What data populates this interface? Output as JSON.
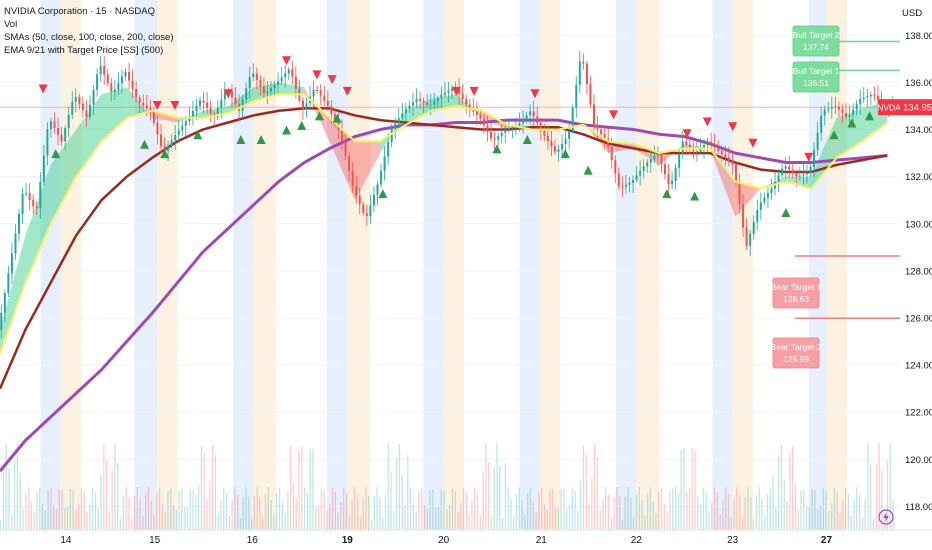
{
  "legend": {
    "symbol": "NVIDIA Corporation · 15 · NASDAQ",
    "vol": "Vol",
    "smas": "SMAs (50, close, 100, close, 200, close)",
    "ema": "EMA 9/21 with Target Price [SS] (500)"
  },
  "price_axis": {
    "currency": "USD",
    "ticker_badge": "NVDA",
    "last_price_label": "134.95",
    "colors": {
      "badge": "#f23645",
      "axis_text": "#131722"
    }
  },
  "targets": {
    "bull_target_2": {
      "label": "Bull Target 2",
      "value": "137.74"
    },
    "bull_target_1": {
      "label": "Bull Target 1",
      "value": "136.51"
    },
    "bear_target_1": {
      "label": "Bear Target 1",
      "value": "128.63"
    },
    "bear_target_2": {
      "label": "Bear Target 2",
      "value": "125.99"
    }
  },
  "chart_data": {
    "type": "line",
    "ylim": [
      117,
      139.5
    ],
    "y_ticks": [
      118,
      120,
      122,
      124,
      126,
      128,
      130,
      132,
      134,
      136,
      138
    ],
    "y_tick_labels": [
      "118.00",
      "120.00",
      "122.00",
      "124.00",
      "126.00",
      "128.00",
      "130.00",
      "132.00",
      "134.00",
      "136.00",
      "138.00"
    ],
    "x_ticks": [
      {
        "label": "14",
        "t": 2.6,
        "bold": false
      },
      {
        "label": "15",
        "t": 6.1,
        "bold": false
      },
      {
        "label": "16",
        "t": 9.95,
        "bold": false
      },
      {
        "label": "19",
        "t": 13.7,
        "bold": true
      },
      {
        "label": "20",
        "t": 17.5,
        "bold": false
      },
      {
        "label": "21",
        "t": 21.35,
        "bold": false
      },
      {
        "label": "22",
        "t": 25.1,
        "bold": false
      },
      {
        "label": "23",
        "t": 28.9,
        "bold": false
      },
      {
        "label": "27",
        "t": 32.6,
        "bold": true
      }
    ],
    "t_range": [
      0,
      35.5
    ],
    "last_price": 134.95,
    "price_series": {
      "name": "NVDA",
      "t": [
        0,
        0.5,
        1,
        1.5,
        2,
        2.5,
        3,
        3.5,
        4,
        4.5,
        5,
        5.5,
        6,
        6.5,
        7,
        7.5,
        8,
        8.5,
        9,
        9.5,
        10,
        10.5,
        11,
        11.5,
        12,
        12.5,
        13,
        13.5,
        14,
        14.5,
        15,
        15.5,
        16,
        16.5,
        17,
        17.5,
        18,
        18.5,
        19,
        19.5,
        20,
        20.5,
        21,
        21.5,
        22,
        22.5,
        23,
        23.5,
        24,
        24.5,
        25,
        25.5,
        26,
        26.5,
        27,
        27.5,
        28,
        28.5,
        29,
        29.5,
        30,
        30.5,
        31,
        31.5,
        32,
        32.5,
        33,
        33.5,
        34,
        34.5,
        35
      ],
      "values": [
        125.5,
        128.5,
        131.5,
        130.5,
        134.5,
        133.5,
        135.5,
        134.5,
        136.8,
        135.5,
        136.5,
        135.2,
        134.8,
        133.0,
        133.8,
        134.5,
        135.3,
        134.5,
        135.8,
        134.8,
        136.5,
        135.5,
        136.0,
        136.6,
        134.8,
        135.8,
        135.0,
        133.8,
        131.5,
        130.2,
        131.8,
        134.0,
        134.8,
        135.3,
        135.0,
        135.5,
        135.8,
        135.0,
        134.5,
        133.5,
        134.0,
        134.2,
        134.8,
        133.8,
        133.0,
        133.8,
        137.3,
        134.2,
        133.5,
        131.5,
        131.8,
        132.5,
        133.0,
        131.5,
        133.5,
        133.0,
        133.5,
        133.0,
        132.5,
        129.0,
        130.8,
        131.5,
        132.5,
        132.0,
        132.2,
        134.8,
        135.0,
        134.5,
        135.3,
        135.5,
        134.95
      ]
    },
    "series": [
      {
        "name": "SMA 50",
        "color": "#9b2a1e",
        "t": [
          0,
          1,
          2,
          3,
          4,
          5,
          6,
          7,
          8,
          9,
          10,
          11,
          12,
          13,
          14,
          15,
          16,
          17,
          18,
          19,
          20,
          21,
          22,
          23,
          24,
          25,
          26,
          27,
          28,
          29,
          30,
          31,
          32,
          33,
          34,
          35
        ],
        "values": [
          123.0,
          125.5,
          127.5,
          129.5,
          131.0,
          132.0,
          132.8,
          133.5,
          134.0,
          134.3,
          134.6,
          134.8,
          134.9,
          134.9,
          134.6,
          134.4,
          134.3,
          134.2,
          134.1,
          134.0,
          134.0,
          134.1,
          134.1,
          133.8,
          133.4,
          133.2,
          133.0,
          133.0,
          133.0,
          132.6,
          132.3,
          132.2,
          132.2,
          132.5,
          132.7,
          132.9
        ]
      },
      {
        "name": "SMA 100",
        "color": "#9c4bb3",
        "t": [
          0,
          1,
          2,
          3,
          4,
          5,
          6,
          7,
          8,
          9,
          10,
          11,
          12,
          13,
          14,
          15,
          16,
          17,
          18,
          19,
          20,
          21,
          22,
          23,
          24,
          25,
          26,
          27,
          28,
          29,
          30,
          31,
          32,
          33,
          34,
          35
        ],
        "values": [
          119.5,
          120.8,
          121.8,
          122.8,
          123.8,
          125.0,
          126.2,
          127.5,
          128.8,
          129.8,
          130.8,
          131.8,
          132.6,
          133.2,
          133.7,
          134.0,
          134.2,
          134.2,
          134.3,
          134.3,
          134.4,
          134.4,
          134.4,
          134.2,
          134.1,
          134.0,
          133.8,
          133.7,
          133.4,
          133.0,
          132.8,
          132.6,
          132.6,
          132.7,
          132.8,
          132.9
        ]
      },
      {
        "name": "EMA 9",
        "color": "#2ecc87",
        "t": [
          0,
          1,
          2,
          3,
          4,
          5,
          6,
          7,
          8,
          9,
          10,
          11,
          12,
          13,
          14,
          15,
          16,
          17,
          18,
          19,
          20,
          21,
          22,
          23,
          24,
          25,
          26,
          27,
          28,
          29,
          30,
          31,
          32,
          33,
          34,
          35
        ],
        "values": [
          125.5,
          129.5,
          132.5,
          134.0,
          135.5,
          135.8,
          134.5,
          134.3,
          134.8,
          135.0,
          135.8,
          136.0,
          135.8,
          133.5,
          131.0,
          133.0,
          134.8,
          135.3,
          135.5,
          134.5,
          134.0,
          134.2,
          134.0,
          134.3,
          133.0,
          133.2,
          132.5,
          133.4,
          133.2,
          130.3,
          131.5,
          132.0,
          132.0,
          134.5,
          134.9,
          135.2
        ]
      },
      {
        "name": "EMA 21",
        "color": "#f5f064",
        "t": [
          0,
          1,
          2,
          3,
          4,
          5,
          6,
          7,
          8,
          9,
          10,
          11,
          12,
          13,
          14,
          15,
          16,
          17,
          18,
          19,
          20,
          21,
          22,
          23,
          24,
          25,
          26,
          27,
          28,
          29,
          30,
          31,
          32,
          33,
          34,
          35
        ],
        "values": [
          124.5,
          127.5,
          130.0,
          132.0,
          133.5,
          134.5,
          134.8,
          134.5,
          134.5,
          134.7,
          135.2,
          135.5,
          135.5,
          134.5,
          133.5,
          133.5,
          134.2,
          134.8,
          135.0,
          134.8,
          134.2,
          134.0,
          134.0,
          134.2,
          133.5,
          133.4,
          133.0,
          133.2,
          133.2,
          131.8,
          131.5,
          131.8,
          131.5,
          132.8,
          133.5,
          134.3
        ]
      }
    ],
    "signals_up": [
      [
        2.2,
        133.0
      ],
      [
        5.7,
        133.4
      ],
      [
        6.5,
        133.0
      ],
      [
        7.8,
        133.8
      ],
      [
        9.5,
        133.6
      ],
      [
        10.3,
        133.6
      ],
      [
        11.3,
        134.0
      ],
      [
        11.9,
        134.2
      ],
      [
        12.6,
        134.6
      ],
      [
        13.3,
        134.5
      ],
      [
        15.1,
        131.3
      ],
      [
        19.6,
        133.2
      ],
      [
        20.8,
        133.6
      ],
      [
        22.3,
        133.0
      ],
      [
        23.2,
        132.3
      ],
      [
        26.3,
        131.3
      ],
      [
        27.4,
        131.2
      ],
      [
        31.0,
        130.5
      ],
      [
        32.9,
        133.8
      ],
      [
        33.6,
        134.3
      ],
      [
        34.3,
        134.6
      ]
    ],
    "signals_down": [
      [
        1.7,
        135.7
      ],
      [
        6.2,
        135.0
      ],
      [
        6.9,
        135.0
      ],
      [
        9.0,
        135.5
      ],
      [
        11.3,
        136.9
      ],
      [
        12.5,
        136.3
      ],
      [
        13.1,
        136.1
      ],
      [
        13.7,
        135.6
      ],
      [
        18.0,
        135.6
      ],
      [
        18.7,
        135.6
      ],
      [
        21.1,
        135.5
      ],
      [
        24.2,
        134.6
      ],
      [
        27.1,
        133.8
      ],
      [
        27.9,
        134.3
      ],
      [
        28.9,
        134.1
      ],
      [
        29.7,
        133.4
      ],
      [
        31.9,
        132.8
      ],
      [
        36.7,
        133.2
      ]
    ],
    "target_lines": [
      137.74,
      136.51,
      128.63,
      125.99
    ],
    "sessions": [
      {
        "t0": 1.6,
        "t1": 2.4,
        "kind": "pre"
      },
      {
        "t0": 2.4,
        "t1": 3.2,
        "kind": "post"
      },
      {
        "t0": 5.3,
        "t1": 6.2,
        "kind": "pre"
      },
      {
        "t0": 6.2,
        "t1": 7.0,
        "kind": "post"
      },
      {
        "t0": 9.2,
        "t1": 10.0,
        "kind": "pre"
      },
      {
        "t0": 10.0,
        "t1": 10.9,
        "kind": "post"
      },
      {
        "t0": 12.9,
        "t1": 13.7,
        "kind": "pre"
      },
      {
        "t0": 13.7,
        "t1": 14.6,
        "kind": "post"
      },
      {
        "t0": 16.7,
        "t1": 17.5,
        "kind": "pre"
      },
      {
        "t0": 17.5,
        "t1": 18.3,
        "kind": "post"
      },
      {
        "t0": 20.5,
        "t1": 21.3,
        "kind": "pre"
      },
      {
        "t0": 21.3,
        "t1": 22.1,
        "kind": "post"
      },
      {
        "t0": 24.3,
        "t1": 25.1,
        "kind": "pre"
      },
      {
        "t0": 25.1,
        "t1": 26.0,
        "kind": "post"
      },
      {
        "t0": 28.1,
        "t1": 28.9,
        "kind": "pre"
      },
      {
        "t0": 28.9,
        "t1": 29.7,
        "kind": "post"
      },
      {
        "t0": 31.9,
        "t1": 32.6,
        "kind": "pre"
      },
      {
        "t0": 32.6,
        "t1": 33.4,
        "kind": "post"
      }
    ]
  }
}
